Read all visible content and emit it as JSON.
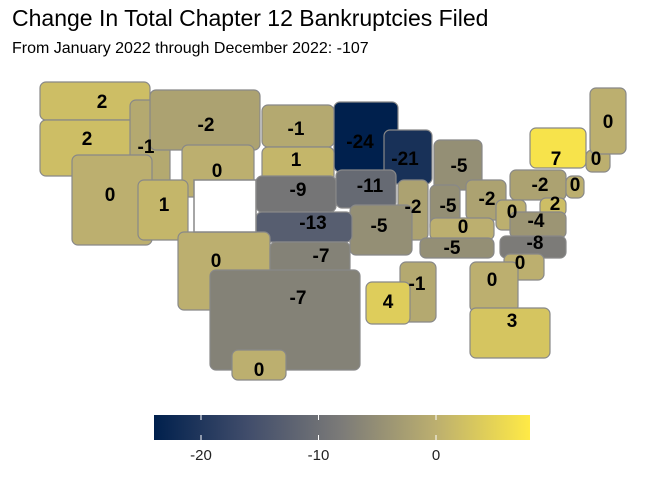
{
  "chart_data": {
    "type": "choropleth",
    "title": "Change In Total Chapter 12 Bankruptcies Filed",
    "subtitle": "From January 2022 through December 2022: -107",
    "values": [
      2,
      2,
      -1,
      -2,
      -1,
      -24,
      -21,
      -5,
      1,
      0,
      0,
      1,
      -9,
      -11,
      -2,
      -5,
      -2,
      -2,
      7,
      0,
      0,
      0,
      2,
      0,
      -4,
      0,
      -5,
      -13,
      0,
      -5,
      -8,
      0,
      0,
      -1,
      4,
      -7,
      -7,
      3,
      0
    ],
    "colorscale": [
      "#00204D",
      "#414D6B",
      "#7C7B78",
      "#BCAF6F",
      "#FFEA46"
    ],
    "clim": [
      -24,
      8
    ],
    "colorbar_ticks": [
      -20,
      -10,
      0
    ],
    "missing_color": "#ffffff"
  }
}
